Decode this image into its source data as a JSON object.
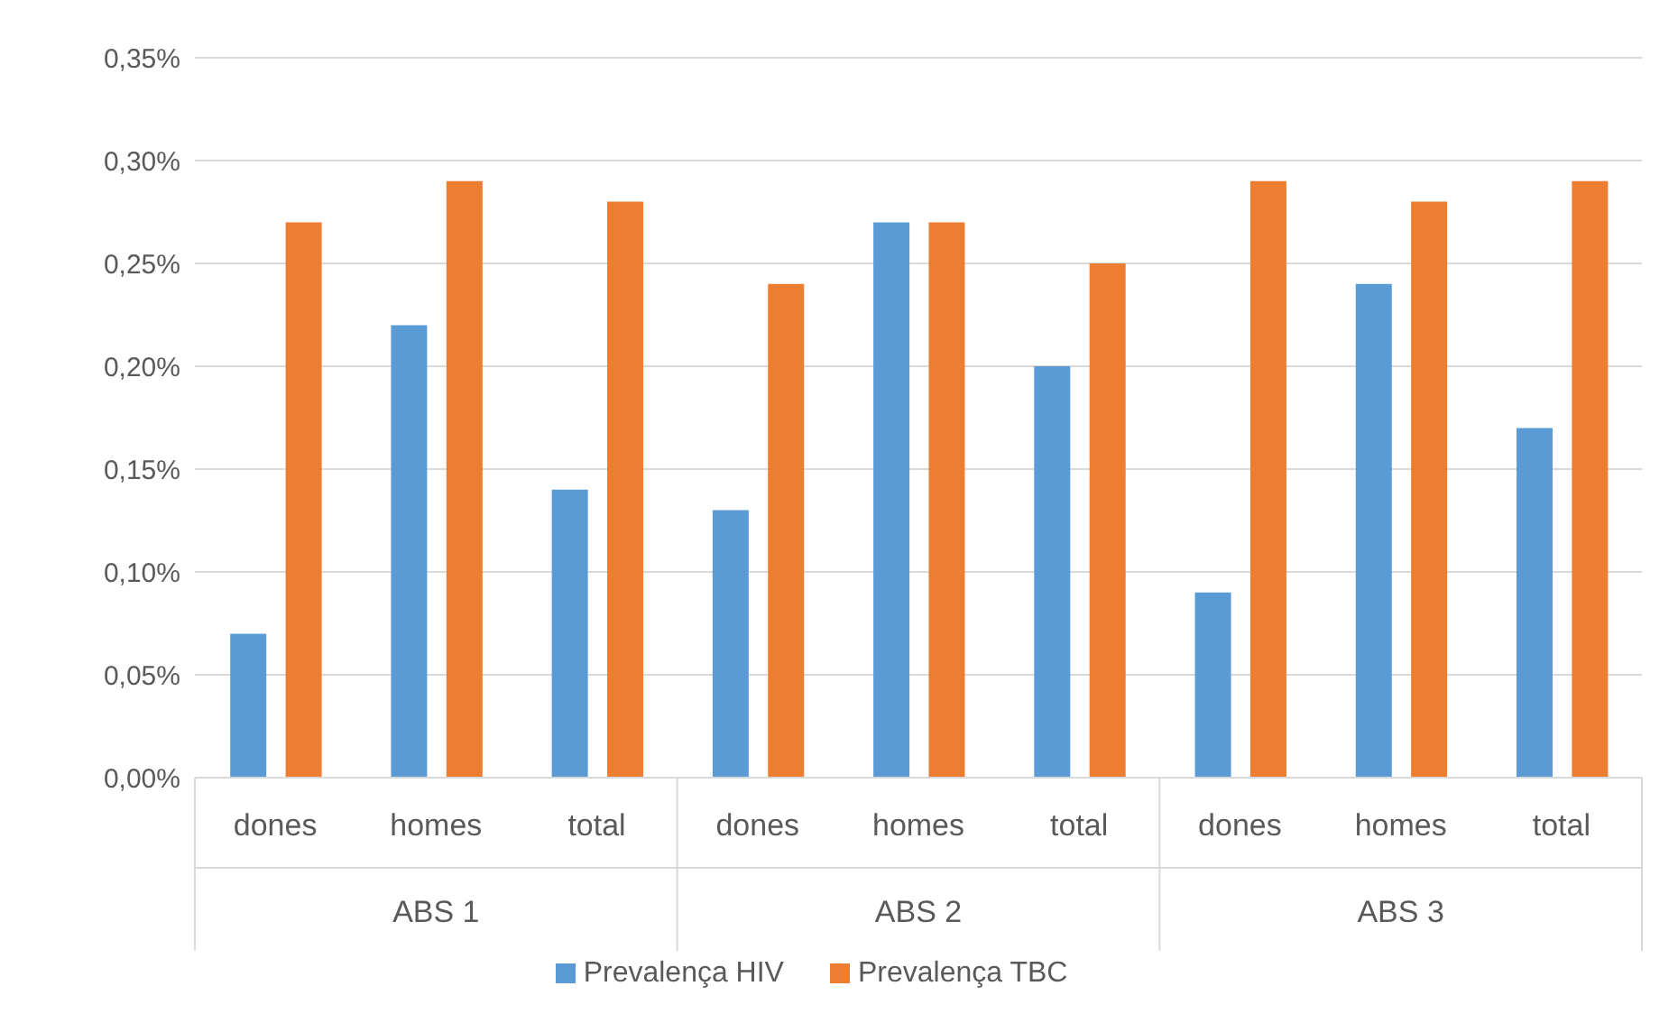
{
  "chart_data": {
    "type": "bar",
    "categories": [
      "dones",
      "homes",
      "total",
      "dones",
      "homes",
      "total",
      "dones",
      "homes",
      "total"
    ],
    "annotations": [
      "ABS 1",
      "ABS 2",
      "ABS 3"
    ],
    "series": [
      {
        "name": "Prevalença HIV",
        "color": "#5b9bd5",
        "values": [
          0.07,
          0.22,
          0.14,
          0.13,
          0.27,
          0.2,
          0.09,
          0.24,
          0.17
        ]
      },
      {
        "name": "Prevalença TBC",
        "color": "#ed7d31",
        "values": [
          0.27,
          0.29,
          0.28,
          0.24,
          0.27,
          0.25,
          0.29,
          0.28,
          0.29
        ]
      }
    ],
    "ylim": [
      0,
      0.35
    ],
    "yticks": [
      {
        "value": 0,
        "label": "0,00%"
      },
      {
        "value": 0.05,
        "label": "0,05%"
      },
      {
        "value": 0.1,
        "label": "0,10%"
      },
      {
        "value": 0.15,
        "label": "0,15%"
      },
      {
        "value": 0.2,
        "label": "0,20%"
      },
      {
        "value": 0.25,
        "label": "0,25%"
      },
      {
        "value": 0.3,
        "label": "0,30%"
      },
      {
        "value": 0.35,
        "label": "0,35%"
      }
    ],
    "grid": "y",
    "legend": "bottom"
  }
}
